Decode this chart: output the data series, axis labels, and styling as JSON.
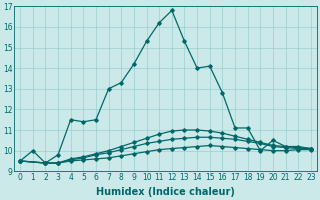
{
  "xlabel": "Humidex (Indice chaleur)",
  "ylabel": "",
  "bg_color": "#cce9e9",
  "grid_color": "#9acece",
  "line_color": "#006868",
  "xlim": [
    -0.5,
    23.5
  ],
  "ylim": [
    9,
    17
  ],
  "xticks": [
    0,
    1,
    2,
    3,
    4,
    5,
    6,
    7,
    8,
    9,
    10,
    11,
    12,
    13,
    14,
    15,
    16,
    17,
    18,
    19,
    20,
    21,
    22,
    23
  ],
  "yticks": [
    9,
    10,
    11,
    12,
    13,
    14,
    15,
    16,
    17
  ],
  "series1_x": [
    0,
    1,
    2,
    3,
    4,
    5,
    6,
    7,
    8,
    9,
    10,
    11,
    12,
    13,
    14,
    15,
    16,
    17,
    18,
    19,
    20,
    21,
    22,
    23
  ],
  "series1_y": [
    9.5,
    10.0,
    9.4,
    9.8,
    11.5,
    11.4,
    11.5,
    13.0,
    13.3,
    14.2,
    15.3,
    16.2,
    16.8,
    15.3,
    14.0,
    14.1,
    12.8,
    11.1,
    11.1,
    10.0,
    10.5,
    10.2,
    10.2,
    10.1
  ],
  "series2_x": [
    0,
    2,
    3,
    4,
    5,
    6,
    7,
    8,
    9,
    10,
    11,
    12,
    13,
    14,
    15,
    16,
    17,
    18,
    19,
    20,
    21,
    22,
    23
  ],
  "series2_y": [
    9.5,
    9.4,
    9.4,
    9.5,
    9.55,
    9.6,
    9.65,
    9.75,
    9.85,
    9.95,
    10.05,
    10.1,
    10.15,
    10.2,
    10.25,
    10.2,
    10.15,
    10.1,
    10.05,
    10.0,
    10.0,
    10.05,
    10.05
  ],
  "series3_x": [
    0,
    2,
    3,
    4,
    5,
    6,
    7,
    8,
    9,
    10,
    11,
    12,
    13,
    14,
    15,
    16,
    17,
    18,
    19,
    20,
    21,
    22,
    23
  ],
  "series3_y": [
    9.5,
    9.4,
    9.4,
    9.55,
    9.65,
    9.8,
    9.9,
    10.05,
    10.2,
    10.35,
    10.45,
    10.55,
    10.6,
    10.65,
    10.65,
    10.6,
    10.55,
    10.45,
    10.35,
    10.2,
    10.15,
    10.1,
    10.1
  ],
  "series4_x": [
    0,
    2,
    3,
    4,
    5,
    6,
    7,
    8,
    9,
    10,
    11,
    12,
    13,
    14,
    15,
    16,
    17,
    18,
    19,
    20,
    21,
    22,
    23
  ],
  "series4_y": [
    9.5,
    9.4,
    9.4,
    9.6,
    9.7,
    9.85,
    10.0,
    10.2,
    10.4,
    10.6,
    10.8,
    10.95,
    11.0,
    11.0,
    10.95,
    10.85,
    10.7,
    10.55,
    10.4,
    10.25,
    10.2,
    10.15,
    10.1
  ],
  "marker": "D",
  "marker_size": 1.8,
  "line_width": 0.9,
  "xlabel_fontsize": 7,
  "tick_fontsize": 5.5
}
